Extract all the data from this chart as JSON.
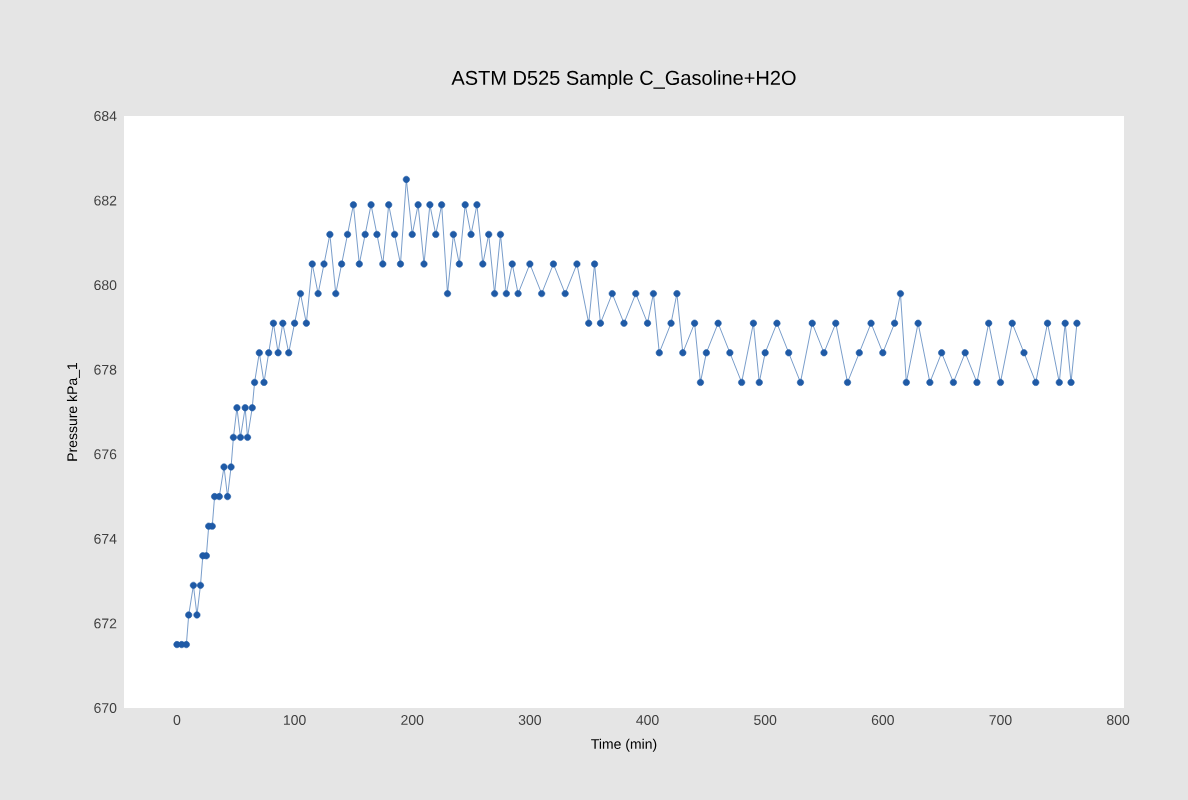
{
  "chart_data": {
    "type": "line",
    "title": "ASTM D525 Sample C_Gasoline+H2O",
    "xlabel": "Time (min)",
    "ylabel": "Pressure kPa_1",
    "marker": "circle",
    "line_style": "solid",
    "xlim": [
      -45,
      805
    ],
    "ylim": [
      670,
      684
    ],
    "xticks": [
      0,
      100,
      200,
      300,
      400,
      500,
      600,
      700,
      800
    ],
    "yticks": [
      670,
      672,
      674,
      676,
      678,
      680,
      682,
      684
    ],
    "series": [
      {
        "color": "#1f5aa6",
        "x": [
          0,
          4,
          8,
          10,
          14,
          17,
          20,
          22,
          25,
          27,
          30,
          32,
          36,
          40,
          43,
          46,
          48,
          51,
          54,
          58,
          60,
          64,
          66,
          70,
          74,
          78,
          82,
          86,
          90,
          95,
          100,
          105,
          110,
          115,
          120,
          125,
          130,
          135,
          140,
          145,
          150,
          155,
          160,
          165,
          170,
          175,
          180,
          185,
          190,
          195,
          200,
          205,
          210,
          215,
          220,
          225,
          230,
          235,
          240,
          245,
          250,
          255,
          260,
          265,
          270,
          275,
          280,
          285,
          290,
          300,
          310,
          320,
          330,
          340,
          350,
          355,
          360,
          370,
          380,
          390,
          400,
          405,
          410,
          420,
          425,
          430,
          440,
          445,
          450,
          460,
          470,
          480,
          490,
          495,
          500,
          510,
          520,
          530,
          540,
          550,
          560,
          570,
          580,
          590,
          600,
          610,
          615,
          620,
          630,
          640,
          650,
          660,
          670,
          680,
          690,
          700,
          710,
          720,
          730,
          740,
          750,
          755,
          760,
          765
        ],
        "values": [
          671.5,
          671.5,
          671.5,
          672.2,
          672.9,
          672.2,
          672.9,
          673.6,
          673.6,
          674.3,
          674.3,
          675.0,
          675.0,
          675.7,
          675.0,
          675.7,
          676.4,
          677.1,
          676.4,
          677.1,
          676.4,
          677.1,
          677.7,
          678.4,
          677.7,
          678.4,
          679.1,
          678.4,
          679.1,
          678.4,
          679.1,
          679.8,
          679.1,
          680.5,
          679.8,
          680.5,
          681.2,
          679.8,
          680.5,
          681.2,
          681.9,
          680.5,
          681.2,
          681.9,
          681.2,
          680.5,
          681.9,
          681.2,
          680.5,
          682.5,
          681.2,
          681.9,
          680.5,
          681.9,
          681.2,
          681.9,
          679.8,
          681.2,
          680.5,
          681.9,
          681.2,
          681.9,
          680.5,
          681.2,
          679.8,
          681.2,
          679.8,
          680.5,
          679.8,
          680.5,
          679.8,
          680.5,
          679.8,
          680.5,
          679.1,
          680.5,
          679.1,
          679.8,
          679.1,
          679.8,
          679.1,
          679.8,
          678.4,
          679.1,
          679.8,
          678.4,
          679.1,
          677.7,
          678.4,
          679.1,
          678.4,
          677.7,
          679.1,
          677.7,
          678.4,
          679.1,
          678.4,
          677.7,
          679.1,
          678.4,
          679.1,
          677.7,
          678.4,
          679.1,
          678.4,
          679.1,
          679.8,
          677.7,
          679.1,
          677.7,
          678.4,
          677.7,
          678.4,
          677.7,
          679.1,
          677.7,
          679.1,
          678.4,
          677.7,
          679.1,
          677.7,
          679.1,
          677.7,
          679.1
        ]
      }
    ]
  }
}
